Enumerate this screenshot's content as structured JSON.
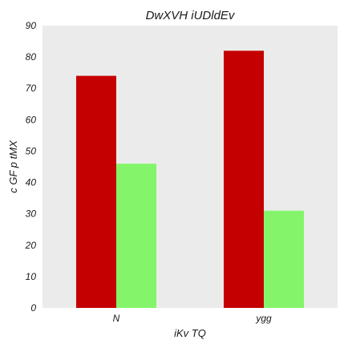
{
  "chart_data": {
    "type": "bar",
    "title": "DwXVH iUDldEv",
    "xlabel": "iKv TQ",
    "ylabel": "c GF p tMX",
    "categories": [
      "N",
      "ygg"
    ],
    "series": [
      {
        "values": [
          74,
          82
        ],
        "color": "#c40000"
      },
      {
        "values": [
          46,
          31
        ],
        "color": "#84f56b"
      }
    ],
    "ylim": [
      0,
      90
    ],
    "yticks": [
      0,
      10,
      20,
      30,
      40,
      50,
      60,
      70,
      80,
      90
    ],
    "grid": false,
    "background": "#ebebeb"
  }
}
